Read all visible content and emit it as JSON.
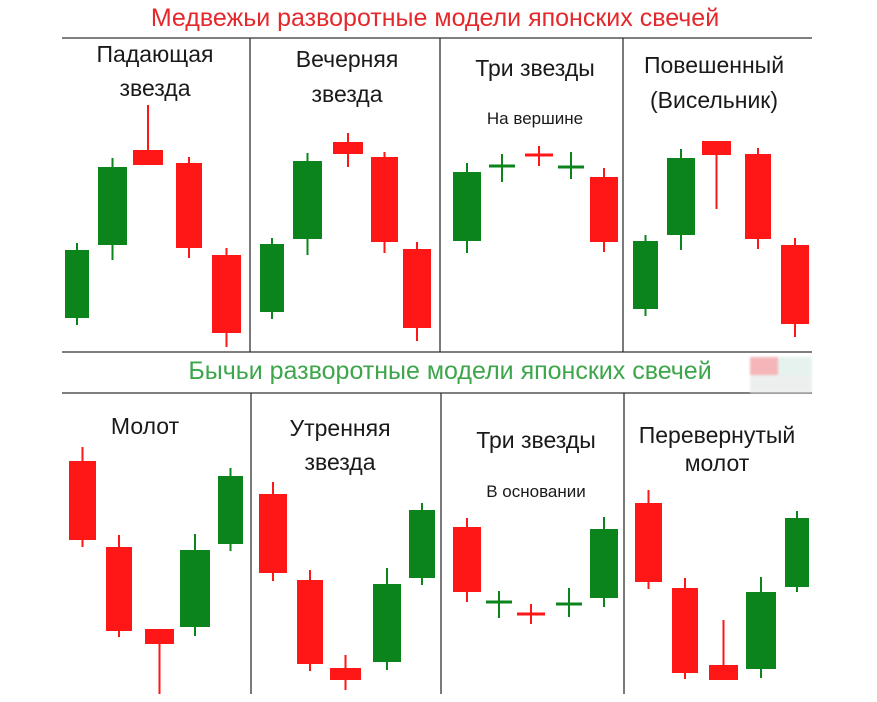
{
  "colors": {
    "bullish": "#0c841c",
    "bearish": "#ff1616",
    "bear_title": "#e5282c",
    "bull_title": "#3da64b",
    "divider": "#333333"
  },
  "bearish_section": {
    "title": "Медвежьи разворотные модели японских свечей",
    "patterns": [
      {
        "name_lines": [
          "Падающая",
          "звезда"
        ],
        "candles": [
          "bullish",
          "bullish",
          "bearish",
          "bearish",
          "bearish"
        ]
      },
      {
        "name_lines": [
          "Вечерняя",
          "звезда"
        ],
        "candles": [
          "bullish",
          "bullish",
          "bearish",
          "bearish",
          "bearish"
        ]
      },
      {
        "name_lines": [
          "Три звезды"
        ],
        "subtitle": "На вершине",
        "candles": [
          "bullish",
          "doji-bullish",
          "doji-bearish",
          "doji-bullish",
          "bearish"
        ]
      },
      {
        "name_lines": [
          "Повешенный",
          "(Висельник)"
        ],
        "candles": [
          "bullish",
          "bullish",
          "bearish",
          "bearish",
          "bearish"
        ]
      }
    ]
  },
  "bullish_section": {
    "title": "Бычьи разворотные модели японских свечей",
    "patterns": [
      {
        "name_lines": [
          "Молот"
        ],
        "candles": [
          "bearish",
          "bearish",
          "bearish",
          "bullish",
          "bullish"
        ]
      },
      {
        "name_lines": [
          "Утренняя",
          "звезда"
        ],
        "candles": [
          "bearish",
          "bearish",
          "bearish",
          "bullish",
          "bullish"
        ]
      },
      {
        "name_lines": [
          "Три звезды"
        ],
        "subtitle": "В основании",
        "candles": [
          "bearish",
          "doji-bullish",
          "doji-bearish",
          "doji-bullish",
          "bullish"
        ]
      },
      {
        "name_lines": [
          "Перевернутый",
          "молот"
        ],
        "candles": [
          "bearish",
          "bearish",
          "bearish",
          "bullish",
          "bullish"
        ]
      }
    ]
  }
}
